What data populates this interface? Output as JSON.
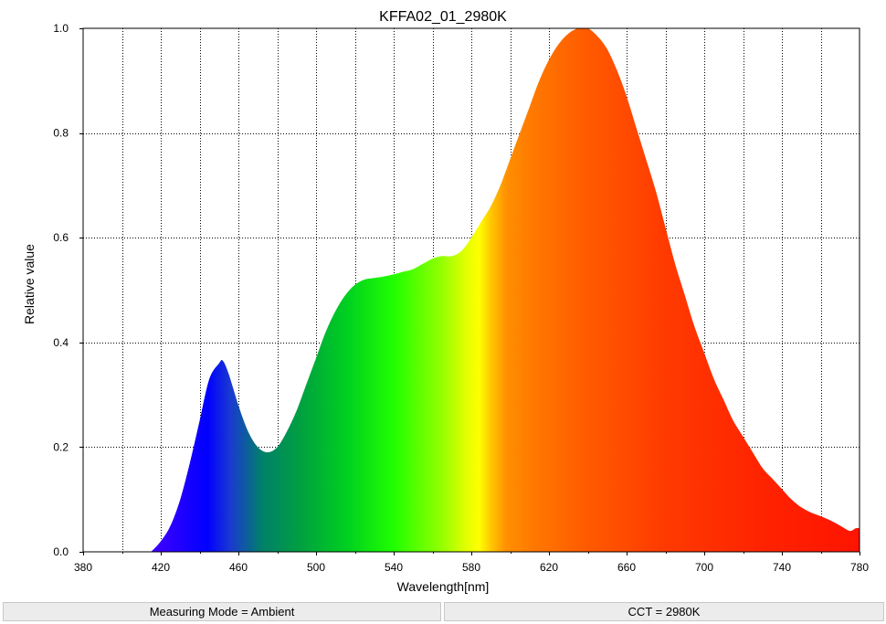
{
  "chart_data": {
    "type": "area",
    "title": "KFFA02_01_2980K",
    "xlabel": "Wavelength[nm]",
    "ylabel": "Relative value",
    "xlim": [
      380,
      780
    ],
    "ylim": [
      0,
      1.0
    ],
    "xticks": [
      "380",
      "420",
      "460",
      "500",
      "540",
      "580",
      "620",
      "660",
      "700",
      "740",
      "780"
    ],
    "yticks": [
      "0.0",
      "0.2",
      "0.4",
      "0.6",
      "0.8",
      "1.0"
    ],
    "grid": true,
    "fill": "visible-spectrum gradient",
    "x": [
      415,
      420,
      425,
      430,
      435,
      440,
      445,
      450,
      452,
      455,
      460,
      465,
      470,
      475,
      480,
      485,
      490,
      495,
      500,
      505,
      510,
      515,
      520,
      525,
      530,
      535,
      540,
      545,
      550,
      555,
      560,
      565,
      570,
      575,
      580,
      585,
      590,
      595,
      600,
      605,
      610,
      615,
      620,
      625,
      630,
      635,
      640,
      645,
      650,
      655,
      660,
      665,
      670,
      675,
      680,
      685,
      690,
      695,
      700,
      705,
      710,
      715,
      720,
      725,
      730,
      735,
      740,
      745,
      750,
      755,
      760,
      765,
      770,
      775,
      778,
      780
    ],
    "y": [
      0.0,
      0.02,
      0.05,
      0.1,
      0.17,
      0.25,
      0.33,
      0.36,
      0.365,
      0.34,
      0.28,
      0.23,
      0.2,
      0.19,
      0.2,
      0.23,
      0.27,
      0.32,
      0.37,
      0.42,
      0.46,
      0.49,
      0.51,
      0.52,
      0.523,
      0.526,
      0.53,
      0.535,
      0.54,
      0.55,
      0.56,
      0.565,
      0.565,
      0.575,
      0.6,
      0.63,
      0.66,
      0.7,
      0.75,
      0.8,
      0.85,
      0.9,
      0.94,
      0.97,
      0.99,
      1.0,
      1.0,
      0.985,
      0.96,
      0.92,
      0.87,
      0.81,
      0.75,
      0.69,
      0.62,
      0.55,
      0.49,
      0.43,
      0.38,
      0.33,
      0.29,
      0.25,
      0.22,
      0.19,
      0.16,
      0.14,
      0.12,
      0.1,
      0.085,
      0.075,
      0.068,
      0.06,
      0.05,
      0.04,
      0.045,
      0.045
    ]
  },
  "status": {
    "left": "Measuring Mode = Ambient",
    "right": "CCT = 2980K"
  }
}
